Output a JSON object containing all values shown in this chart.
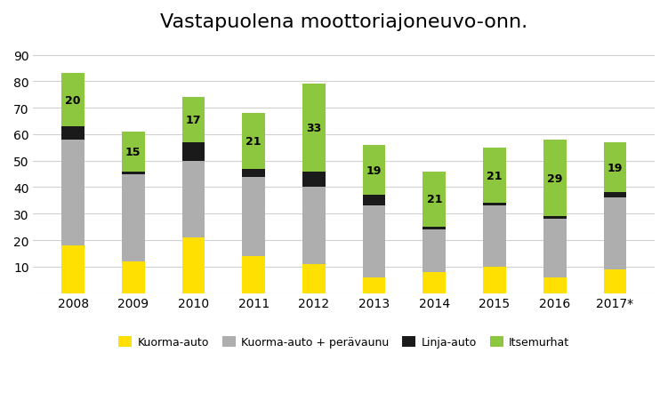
{
  "title": "Vastapuolena moottoriajoneuvo-onn.",
  "years": [
    "2008",
    "2009",
    "2010",
    "2011",
    "2012",
    "2013",
    "2014",
    "2015",
    "2016",
    "2017*"
  ],
  "kuorma_auto": [
    18,
    12,
    21,
    14,
    11,
    6,
    8,
    10,
    6,
    9
  ],
  "kuorma_peravaunu": [
    40,
    33,
    29,
    30,
    29,
    27,
    16,
    23,
    22,
    27
  ],
  "linja_auto": [
    5,
    1,
    7,
    3,
    6,
    4,
    1,
    1,
    1,
    2
  ],
  "itsemurhat": [
    20,
    15,
    17,
    21,
    33,
    19,
    21,
    21,
    29,
    19
  ],
  "colors": {
    "kuorma_auto": "#FFE000",
    "kuorma_peravaunu": "#AEAEAE",
    "linja_auto": "#1A1A1A",
    "itsemurhat": "#8DC63F"
  },
  "ylim": [
    0,
    95
  ],
  "yticks": [
    0,
    10,
    20,
    30,
    40,
    50,
    60,
    70,
    80,
    90
  ],
  "legend_labels": [
    "Kuorma-auto",
    "Kuorma-auto + perävaunu",
    "Linja-auto",
    "Itsemurhat"
  ],
  "background_color": "#FFFFFF",
  "grid_color": "#D0D0D0"
}
